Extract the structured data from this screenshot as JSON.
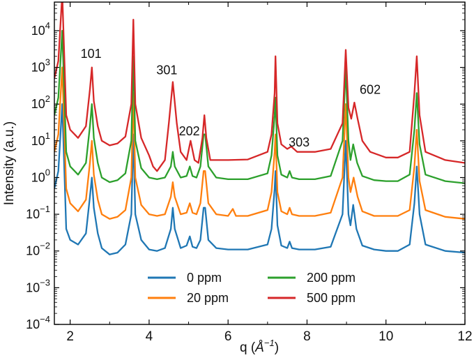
{
  "chart_data": {
    "type": "line",
    "title": "",
    "xlabel_main": "q (",
    "xlabel_unit": "Å",
    "xlabel_exp": "−1",
    "xlabel_close": ")",
    "ylabel": "Intensity (a.u.)",
    "xlim": [
      1.6,
      12
    ],
    "ylim": [
      0.0001,
      60000
    ],
    "yscale": "log",
    "x_ticks": [
      2,
      4,
      6,
      8,
      10,
      12
    ],
    "x_tick_labels": [
      "2",
      "4",
      "6",
      "8",
      "10",
      "12"
    ],
    "y_tick_labels": [
      {
        "exp": -4,
        "base": "10",
        "pow": "−4"
      },
      {
        "exp": -3,
        "base": "10",
        "pow": "−3"
      },
      {
        "exp": -2,
        "base": "10",
        "pow": "−2"
      },
      {
        "exp": -1,
        "base": "10",
        "pow": "−1"
      },
      {
        "exp": 0,
        "base": "10",
        "pow": "0"
      },
      {
        "exp": 1,
        "base": "10",
        "pow": "1"
      },
      {
        "exp": 2,
        "base": "10",
        "pow": "2"
      },
      {
        "exp": 3,
        "base": "10",
        "pow": "3"
      },
      {
        "exp": 4,
        "base": "10",
        "pow": "4"
      }
    ],
    "grid": false,
    "legend_position": "bottom-center",
    "series": [
      {
        "name": "0 ppm",
        "color": "#1f77b4",
        "x": [
          1.6,
          1.7,
          1.8,
          1.9,
          2.0,
          2.2,
          2.4,
          2.5,
          2.55,
          2.6,
          2.7,
          2.8,
          3.0,
          3.2,
          3.4,
          3.55,
          3.6,
          3.65,
          3.8,
          4.0,
          4.2,
          4.4,
          4.55,
          4.6,
          4.65,
          4.8,
          4.95,
          5.03,
          5.1,
          5.2,
          5.3,
          5.38,
          5.42,
          5.5,
          5.7,
          6.0,
          6.5,
          7.0,
          7.1,
          7.18,
          7.2,
          7.25,
          7.35,
          7.5,
          7.56,
          7.62,
          7.8,
          8.2,
          8.6,
          8.9,
          8.98,
          9.05,
          9.1,
          9.17,
          9.25,
          9.4,
          9.7,
          10.0,
          10.3,
          10.6,
          10.72,
          10.78,
          10.85,
          11.0,
          11.5,
          12.0
        ],
        "y": [
          0.5,
          1.5,
          100,
          0.04,
          0.02,
          0.015,
          0.03,
          0.3,
          1.0,
          0.15,
          0.03,
          0.012,
          0.008,
          0.009,
          0.015,
          0.1,
          15,
          0.1,
          0.02,
          0.011,
          0.01,
          0.012,
          0.04,
          0.15,
          0.04,
          0.012,
          0.014,
          0.025,
          0.013,
          0.012,
          0.02,
          0.15,
          0.15,
          0.02,
          0.012,
          0.011,
          0.011,
          0.015,
          0.04,
          0.5,
          1.5,
          0.05,
          0.014,
          0.012,
          0.018,
          0.012,
          0.011,
          0.011,
          0.013,
          0.1,
          10,
          0.1,
          0.05,
          0.18,
          0.04,
          0.014,
          0.011,
          0.01,
          0.01,
          0.015,
          0.2,
          2.0,
          0.1,
          0.015,
          0.01,
          0.009
        ]
      },
      {
        "name": "20 ppm",
        "color": "#ff7f0e",
        "x": [
          1.6,
          1.7,
          1.8,
          1.9,
          2.0,
          2.2,
          2.4,
          2.5,
          2.55,
          2.6,
          2.7,
          2.8,
          3.0,
          3.2,
          3.4,
          3.55,
          3.6,
          3.65,
          3.8,
          4.0,
          4.2,
          4.4,
          4.55,
          4.6,
          4.65,
          4.8,
          4.95,
          5.03,
          5.1,
          5.2,
          5.3,
          5.38,
          5.42,
          5.5,
          5.7,
          6.0,
          6.12,
          6.2,
          6.5,
          7.0,
          7.1,
          7.18,
          7.2,
          7.25,
          7.35,
          7.5,
          7.56,
          7.62,
          7.8,
          8.2,
          8.6,
          8.9,
          8.98,
          9.05,
          9.1,
          9.18,
          9.28,
          9.4,
          9.7,
          10.0,
          10.3,
          10.6,
          10.72,
          10.78,
          10.85,
          11.0,
          11.5,
          12.0
        ],
        "y": [
          5,
          15,
          1000,
          0.5,
          0.2,
          0.12,
          0.25,
          2.5,
          10,
          1.2,
          0.25,
          0.1,
          0.075,
          0.085,
          0.13,
          1.0,
          200,
          1.0,
          0.18,
          0.1,
          0.09,
          0.1,
          0.3,
          0.75,
          0.3,
          0.1,
          0.11,
          0.2,
          0.11,
          0.1,
          0.2,
          1.5,
          1.5,
          0.2,
          0.1,
          0.09,
          0.14,
          0.09,
          0.09,
          0.13,
          0.4,
          5,
          15,
          0.4,
          0.12,
          0.1,
          0.15,
          0.1,
          0.09,
          0.09,
          0.11,
          1.0,
          100,
          1.0,
          0.4,
          1.0,
          0.3,
          0.12,
          0.09,
          0.09,
          0.09,
          0.13,
          2,
          20,
          0.8,
          0.13,
          0.085,
          0.075
        ]
      },
      {
        "name": "200 ppm",
        "color": "#2ca02c",
        "x": [
          1.6,
          1.7,
          1.8,
          1.9,
          2.0,
          2.2,
          2.4,
          2.5,
          2.55,
          2.6,
          2.7,
          2.8,
          3.0,
          3.2,
          3.4,
          3.55,
          3.6,
          3.65,
          3.8,
          4.0,
          4.2,
          4.4,
          4.55,
          4.6,
          4.65,
          4.8,
          4.95,
          5.03,
          5.1,
          5.2,
          5.3,
          5.38,
          5.42,
          5.5,
          5.7,
          6.0,
          6.5,
          7.0,
          7.1,
          7.18,
          7.2,
          7.25,
          7.35,
          7.5,
          7.56,
          7.62,
          7.8,
          8.2,
          8.6,
          8.9,
          8.98,
          9.05,
          9.1,
          9.17,
          9.27,
          9.4,
          9.7,
          10.0,
          10.3,
          10.6,
          10.72,
          10.78,
          10.85,
          11.0,
          11.5,
          12.0
        ],
        "y": [
          50,
          150,
          10000,
          5,
          2,
          1.2,
          2.5,
          25,
          100,
          12,
          2.5,
          1.0,
          0.75,
          0.85,
          1.3,
          10,
          2000,
          10,
          1.8,
          1.0,
          0.9,
          1.0,
          2.0,
          5,
          2.0,
          1.0,
          1.1,
          2.0,
          1.1,
          1.0,
          2.0,
          15,
          15,
          2.0,
          1.0,
          0.9,
          0.9,
          1.3,
          4,
          50,
          150,
          4,
          1.2,
          1.0,
          1.5,
          1.0,
          0.9,
          0.9,
          1.1,
          10,
          1000,
          10,
          3,
          8,
          2.5,
          1.1,
          0.85,
          0.8,
          0.8,
          1.2,
          20,
          200,
          8,
          1.2,
          0.8,
          0.7
        ]
      },
      {
        "name": "500 ppm",
        "color": "#d62728",
        "x": [
          1.6,
          1.7,
          1.8,
          1.9,
          2.0,
          2.2,
          2.4,
          2.5,
          2.55,
          2.6,
          2.7,
          2.8,
          3.0,
          3.2,
          3.4,
          3.55,
          3.6,
          3.65,
          3.8,
          4.0,
          4.1,
          4.2,
          4.4,
          4.5,
          4.6,
          4.7,
          4.8,
          4.95,
          5.05,
          5.15,
          5.25,
          5.35,
          5.4,
          5.45,
          5.55,
          5.7,
          6.0,
          6.5,
          7.0,
          7.1,
          7.18,
          7.2,
          7.25,
          7.35,
          7.5,
          7.6,
          7.75,
          8.2,
          8.6,
          8.9,
          8.98,
          9.05,
          9.12,
          9.2,
          9.28,
          9.4,
          9.6,
          10.0,
          10.3,
          10.6,
          10.72,
          10.78,
          10.85,
          11.0,
          11.5,
          12.0
        ],
        "y": [
          500,
          1500,
          100000,
          50,
          20,
          12,
          25,
          250,
          1000,
          120,
          25,
          10,
          7.5,
          8.5,
          13,
          100,
          20000,
          100,
          12,
          4,
          2,
          1.5,
          3,
          30,
          400,
          30,
          5,
          3,
          10,
          3,
          2.5,
          12,
          50,
          12,
          3,
          3,
          3.0,
          3.1,
          5,
          15,
          200,
          2000,
          30,
          8,
          6,
          7,
          5,
          5,
          6,
          30,
          3000,
          80,
          40,
          110,
          40,
          10,
          5,
          3.5,
          3.5,
          5,
          200,
          2000,
          50,
          5,
          3,
          2.5
        ]
      }
    ],
    "annotations": [
      {
        "text": "101",
        "x": 2.53,
        "y": 1800
      },
      {
        "text": "301",
        "x": 4.45,
        "y": 650
      },
      {
        "text": "202",
        "x": 5.02,
        "y": 14
      },
      {
        "text": "303",
        "x": 7.8,
        "y": 7
      },
      {
        "text": "602",
        "x": 9.6,
        "y": 190
      }
    ]
  }
}
